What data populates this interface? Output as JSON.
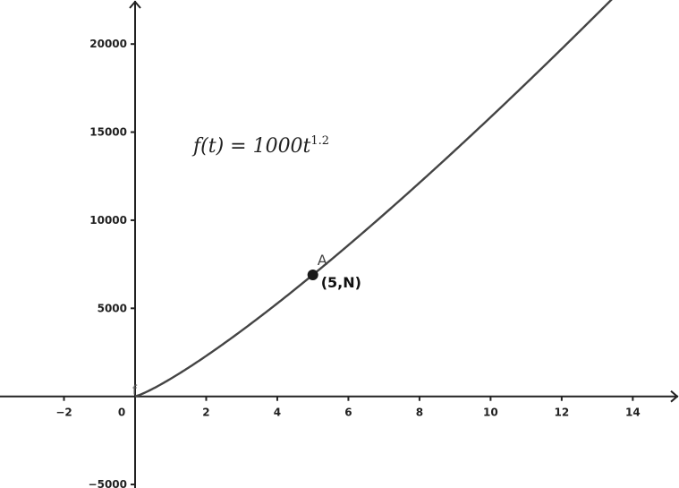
{
  "chart_data": {
    "type": "line",
    "title": "",
    "xlabel": "",
    "ylabel": "",
    "xlim": [
      -3.8,
      15.3
    ],
    "ylim": [
      -5200,
      22500
    ],
    "x_ticks": [
      -2,
      0,
      2,
      4,
      6,
      8,
      10,
      12,
      14
    ],
    "x_tick_labels": [
      "−2",
      "0",
      "2",
      "4",
      "6",
      "8",
      "10",
      "12",
      "14"
    ],
    "y_ticks": [
      -5000,
      5000,
      10000,
      15000,
      20000
    ],
    "y_tick_labels": [
      "−5000",
      "5000",
      "10000",
      "15000",
      "20000"
    ],
    "grid": false,
    "series": [
      {
        "name": "f",
        "function": "1000*t^1.2",
        "domain": [
          0,
          14
        ],
        "color": "#444444"
      }
    ],
    "formula": {
      "lhs": "f(t) = 1000t",
      "exponent": "1.2"
    },
    "points": [
      {
        "name": "A",
        "label": "(5,N)",
        "x": 5,
        "y": 6898.6,
        "color": "#1a1a1a"
      }
    ]
  },
  "colors": {
    "axis": "#222222",
    "curve": "#444444",
    "point": "#1a1a1a"
  }
}
